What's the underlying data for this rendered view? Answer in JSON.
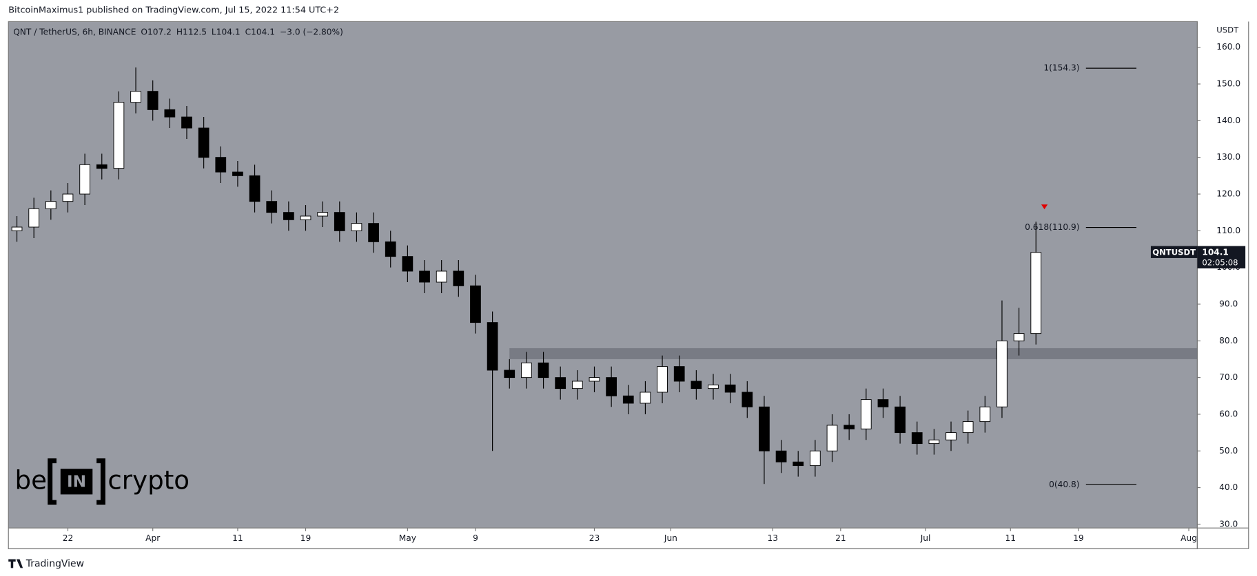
{
  "header": {
    "text": "BitcoinMaximus1 published on TradingView.com, Jul 15, 2022 11:54 UTC+2"
  },
  "footer": {
    "brand": "TradingView"
  },
  "logo": {
    "parts": [
      "be",
      "IN",
      "crypto"
    ]
  },
  "chart_data": {
    "type": "candlestick",
    "symbol": "QNT / TetherUS, 6h, BINANCE",
    "ohlc_legend": [
      "O107.2",
      "H112.5",
      "L104.1",
      "C104.1",
      "−3.0 (−2.80%)"
    ],
    "y_unit": "USDT",
    "up_color": "#ffffff",
    "down_color": "#000000",
    "x": [
      "Mar 16",
      "Mar 18",
      "Mar 20",
      "Mar 22",
      "Mar 24",
      "Mar 26",
      "Mar 28",
      "Mar 30",
      "Apr 1",
      "Apr 3",
      "Apr 5",
      "Apr 7",
      "Apr 9",
      "Apr 11",
      "Apr 13",
      "Apr 15",
      "Apr 17",
      "Apr 19",
      "Apr 21",
      "Apr 23",
      "Apr 25",
      "Apr 27",
      "Apr 29",
      "May 1",
      "May 3",
      "May 5",
      "May 7",
      "May 9",
      "May 11",
      "May 13",
      "May 15",
      "May 17",
      "May 19",
      "May 21",
      "May 23",
      "May 25",
      "May 27",
      "May 29",
      "May 31",
      "Jun 2",
      "Jun 4",
      "Jun 6",
      "Jun 8",
      "Jun 10",
      "Jun 12",
      "Jun 14",
      "Jun 16",
      "Jun 18",
      "Jun 20",
      "Jun 22",
      "Jun 24",
      "Jun 26",
      "Jun 28",
      "Jun 30",
      "Jul 2",
      "Jul 4",
      "Jul 6",
      "Jul 8",
      "Jul 10",
      "Jul 12",
      "Jul 14"
    ],
    "open": [
      110,
      111,
      116,
      118,
      120,
      128,
      127,
      145,
      148,
      143,
      141,
      138,
      130,
      126,
      125,
      118,
      115,
      113,
      114,
      115,
      110,
      112,
      107,
      103,
      99,
      96,
      99,
      95,
      85,
      72,
      70,
      74,
      70,
      67,
      69,
      70,
      65,
      63,
      66,
      73,
      69,
      67,
      68,
      66,
      62,
      50,
      47,
      46,
      50,
      57,
      56,
      64,
      62,
      55,
      52,
      53,
      55,
      58,
      62,
      80,
      82
    ],
    "high": [
      114,
      119,
      121,
      123,
      131,
      131,
      148,
      154.5,
      151,
      146,
      144,
      141,
      133,
      129,
      128,
      121,
      118,
      117,
      118,
      118,
      115,
      115,
      110,
      106,
      102,
      102,
      102,
      98,
      88,
      75,
      77,
      77,
      73,
      72,
      73,
      73,
      68,
      69,
      76,
      76,
      72,
      71,
      71,
      69,
      65,
      53,
      50,
      53,
      60,
      60,
      67,
      67,
      65,
      58,
      56,
      58,
      61,
      65,
      91,
      89,
      112.5
    ],
    "low": [
      107,
      108,
      113,
      115,
      117,
      124,
      124,
      142,
      140,
      138,
      135,
      127,
      123,
      122,
      115,
      112,
      110,
      110,
      111,
      107,
      107,
      104,
      100,
      96,
      93,
      93,
      92,
      82,
      50,
      67,
      67,
      67,
      64,
      64,
      66,
      62,
      60,
      60,
      63,
      66,
      64,
      64,
      63,
      59,
      41,
      44,
      43,
      43,
      47,
      53,
      53,
      59,
      52,
      49,
      49,
      50,
      52,
      55,
      59,
      76,
      79
    ],
    "close": [
      111,
      116,
      118,
      120,
      128,
      127,
      145,
      148,
      143,
      141,
      138,
      130,
      126,
      125,
      118,
      115,
      113,
      114,
      115,
      110,
      112,
      107,
      103,
      99,
      96,
      99,
      95,
      85,
      72,
      70,
      74,
      70,
      67,
      69,
      70,
      65,
      63,
      66,
      73,
      69,
      67,
      68,
      66,
      62,
      50,
      47,
      46,
      50,
      57,
      56,
      64,
      62,
      55,
      52,
      53,
      55,
      58,
      62,
      80,
      82,
      104.1
    ],
    "xlim": [
      "Mar 15",
      "Aug 2"
    ],
    "xticks": [
      {
        "value": "Mar 22",
        "label": "22"
      },
      {
        "value": "Apr 1",
        "label": "Apr"
      },
      {
        "value": "Apr 11",
        "label": "11"
      },
      {
        "value": "Apr 19",
        "label": "19"
      },
      {
        "value": "May 1",
        "label": "May"
      },
      {
        "value": "May 9",
        "label": "9"
      },
      {
        "value": "May 23",
        "label": "23"
      },
      {
        "value": "Jun 1",
        "label": "Jun"
      },
      {
        "value": "Jun 13",
        "label": "13"
      },
      {
        "value": "Jun 21",
        "label": "21"
      },
      {
        "value": "Jul 1",
        "label": "Jul"
      },
      {
        "value": "Jul 11",
        "label": "11"
      },
      {
        "value": "Jul 19",
        "label": "19"
      },
      {
        "value": "Aug 1",
        "label": "Aug"
      }
    ],
    "ylim": [
      29,
      167
    ],
    "yticks": [
      {
        "value": 30,
        "label": "30.0"
      },
      {
        "value": 40,
        "label": "40.0"
      },
      {
        "value": 50,
        "label": "50.0"
      },
      {
        "value": 60,
        "label": "60.0"
      },
      {
        "value": 70,
        "label": "70.0"
      },
      {
        "value": 80,
        "label": "80.0"
      },
      {
        "value": 90,
        "label": "90.0"
      },
      {
        "value": 100,
        "label": "100.0"
      },
      {
        "value": 110,
        "label": "110.0"
      },
      {
        "value": 120,
        "label": "120.0"
      },
      {
        "value": 130,
        "label": "130.0"
      },
      {
        "value": 140,
        "label": "140.0"
      },
      {
        "value": 150,
        "label": "150.0"
      },
      {
        "value": 160,
        "label": "160.0"
      }
    ],
    "fib_levels": [
      {
        "value": 154.3,
        "label": "1(154.3)"
      },
      {
        "value": 110.9,
        "label": "0.618(110.9)"
      },
      {
        "value": 40.8,
        "label": "0(40.8)"
      }
    ],
    "support_zone": {
      "from": "May 13",
      "values": [
        75,
        78
      ]
    },
    "marker": {
      "x": "Jul 15",
      "value": 116.5,
      "color": "#e00000"
    },
    "last_price": {
      "value": 104.1,
      "name": "QNTUSDT",
      "countdown": "02:05:08"
    }
  }
}
